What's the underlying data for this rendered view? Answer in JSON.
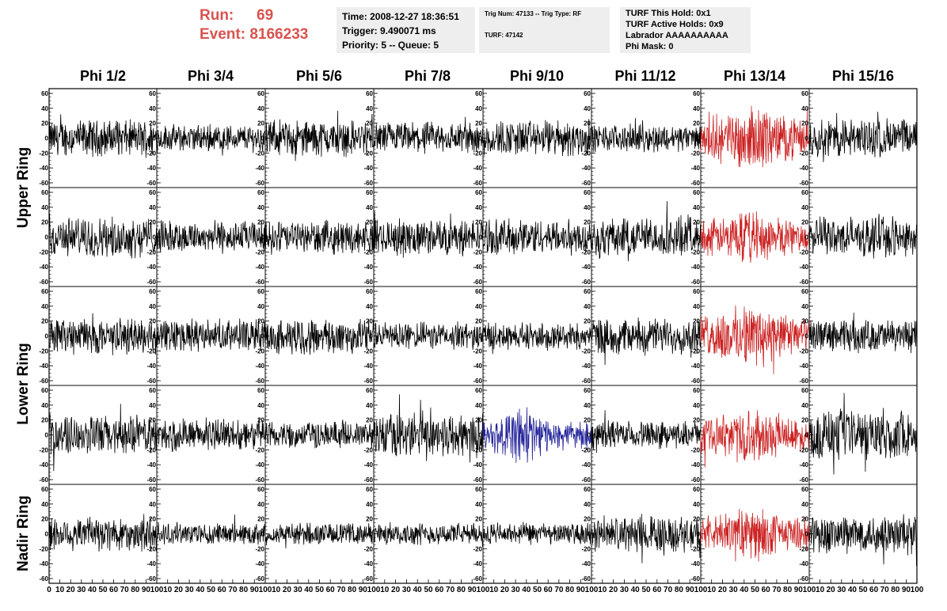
{
  "header": {
    "run_label": "Run:",
    "run_value": "69",
    "event_label": "Event:",
    "event_value": "8166233",
    "run_color": "#d9534f"
  },
  "trigger_info": {
    "time": "Time: 2008-12-27 18:36:51",
    "trigger": "Trigger: 9.490071 ms",
    "priority": "Priority: 5 -- Queue: 5"
  },
  "trig_info": {
    "line1": "Trig Num: 47133 -- Trig Type: RF",
    "line2": "TURF: 47142"
  },
  "turf_info": {
    "hold": "TURF This Hold: 0x1",
    "active": "TURF Active Holds: 0x9",
    "labrador": "Labrador AAAAAAAAAA",
    "mask": "Phi Mask: 0"
  },
  "columns": [
    "Phi 1/2",
    "Phi 3/4",
    "Phi 5/6",
    "Phi 7/8",
    "Phi 9/10",
    "Phi 11/12",
    "Phi 13/14",
    "Phi 15/16"
  ],
  "rows": [
    "Upper Ring",
    "Lower Ring",
    "Nadir Ring"
  ],
  "chart_data": {
    "type": "line",
    "grid": false,
    "xlim": [
      0,
      100
    ],
    "ylim": [
      -60,
      60
    ],
    "x_tick_labels": [
      "0",
      "10",
      "20",
      "30",
      "40",
      "50",
      "60",
      "70",
      "80",
      "90",
      "100"
    ],
    "y_tick_labels": [
      "60",
      "40",
      "20",
      "0",
      "-20",
      "-40",
      "-60"
    ],
    "series_colors": {
      "normal": "#000000",
      "triggered": "#cc2222",
      "highlight": "#22229a"
    },
    "panel_rows": [
      {
        "row": "Upper Ring",
        "color_by_column": [
          "normal",
          "normal",
          "normal",
          "normal",
          "normal",
          "normal",
          "triggered",
          "normal"
        ],
        "amplitude": [
          20,
          15,
          20,
          18,
          20,
          15,
          30,
          22
        ]
      },
      {
        "row": "Upper Ring",
        "color_by_column": [
          "normal",
          "normal",
          "normal",
          "normal",
          "normal",
          "normal",
          "triggered",
          "normal"
        ],
        "amplitude": [
          22,
          18,
          18,
          20,
          20,
          22,
          25,
          22
        ]
      },
      {
        "row": "Lower Ring",
        "color_by_column": [
          "normal",
          "normal",
          "normal",
          "normal",
          "normal",
          "normal",
          "triggered",
          "normal"
        ],
        "amplitude": [
          20,
          18,
          20,
          15,
          15,
          20,
          30,
          18
        ]
      },
      {
        "row": "Lower Ring",
        "color_by_column": [
          "normal",
          "normal",
          "normal",
          "normal",
          "highlight",
          "normal",
          "triggered",
          "normal"
        ],
        "amplitude": [
          22,
          18,
          15,
          25,
          25,
          15,
          25,
          28
        ]
      },
      {
        "row": "Nadir Ring",
        "color_by_column": [
          "normal",
          "normal",
          "normal",
          "normal",
          "normal",
          "normal",
          "triggered",
          "normal"
        ],
        "amplitude": [
          20,
          12,
          12,
          12,
          12,
          20,
          25,
          22
        ]
      }
    ]
  }
}
